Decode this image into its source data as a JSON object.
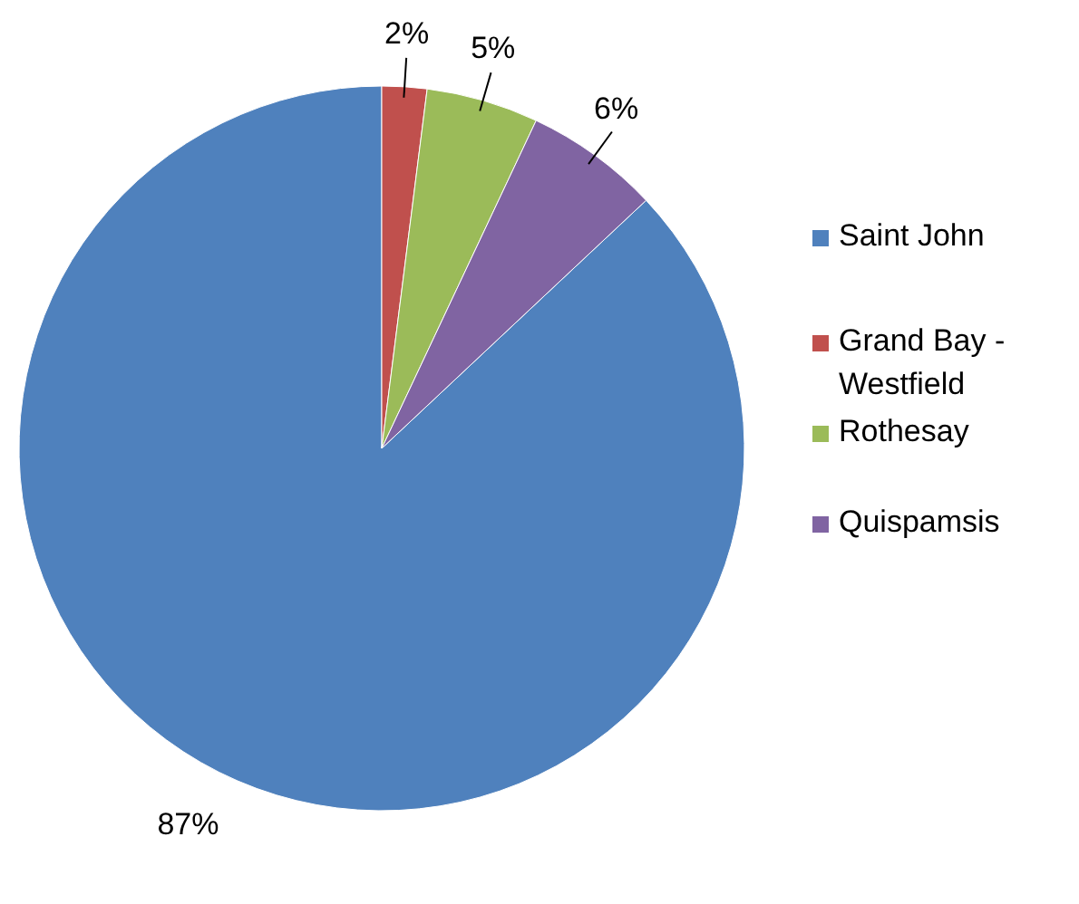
{
  "chart_data": {
    "type": "pie",
    "categories": [
      "Saint John",
      "Grand Bay - Westfield",
      "Rothesay",
      "Quispamsis"
    ],
    "values": [
      87,
      2,
      5,
      6
    ],
    "colors": [
      "#4f81bd",
      "#c0504d",
      "#9bbb59",
      "#8064a2"
    ],
    "value_labels": [
      "87%",
      "2%",
      "5%",
      "6%"
    ],
    "legend": "right"
  }
}
